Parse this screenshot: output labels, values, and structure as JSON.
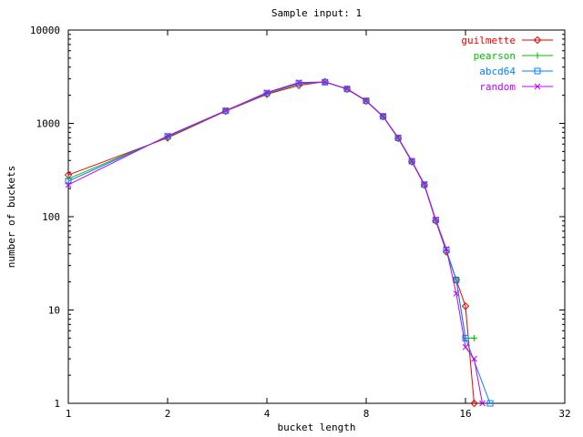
{
  "window": {
    "background": "#ffffff"
  },
  "chart_data": {
    "type": "line",
    "title": "Sample input: 1",
    "xlabel": "bucket length",
    "ylabel": "number of buckets",
    "x_scale": "log2",
    "y_scale": "log10",
    "xlim": [
      1,
      32
    ],
    "ylim": [
      1,
      10000
    ],
    "x_ticks": [
      1,
      2,
      4,
      8,
      16,
      32
    ],
    "y_ticks": [
      1,
      10,
      100,
      1000,
      10000
    ],
    "grid": false,
    "legend_position": "top-right-inside",
    "axis_color": "#000000",
    "text_color": "#000000",
    "series": [
      {
        "name": "guilmette",
        "color": "#ee0000",
        "marker": "diamond",
        "points": [
          [
            1,
            280
          ],
          [
            2,
            700
          ],
          [
            3,
            1350
          ],
          [
            4,
            2050
          ],
          [
            5,
            2550
          ],
          [
            6,
            2800
          ],
          [
            7,
            2320
          ],
          [
            8,
            1730
          ],
          [
            9,
            1180
          ],
          [
            10,
            690
          ],
          [
            11,
            388
          ],
          [
            12,
            218
          ],
          [
            13,
            90
          ],
          [
            14,
            42
          ],
          [
            15,
            21
          ],
          [
            16,
            11
          ],
          [
            17,
            1
          ]
        ]
      },
      {
        "name": "pearson",
        "color": "#00bb00",
        "marker": "plus",
        "points": [
          [
            1,
            255
          ],
          [
            2,
            715
          ],
          [
            3,
            1360
          ],
          [
            4,
            2090
          ],
          [
            5,
            2650
          ],
          [
            6,
            2770
          ],
          [
            7,
            2330
          ],
          [
            8,
            1740
          ],
          [
            9,
            1185
          ],
          [
            10,
            695
          ],
          [
            11,
            390
          ],
          [
            12,
            220
          ],
          [
            13,
            91
          ],
          [
            14,
            43
          ],
          [
            15,
            21
          ],
          [
            16,
            5
          ],
          [
            17,
            5
          ]
        ]
      },
      {
        "name": "abcd64",
        "color": "#0080ff",
        "marker": "square",
        "points": [
          [
            1,
            240
          ],
          [
            2,
            725
          ],
          [
            3,
            1365
          ],
          [
            4,
            2110
          ],
          [
            5,
            2700
          ],
          [
            6,
            2760
          ],
          [
            7,
            2340
          ],
          [
            8,
            1745
          ],
          [
            9,
            1190
          ],
          [
            10,
            700
          ],
          [
            11,
            393
          ],
          [
            12,
            221
          ],
          [
            13,
            92
          ],
          [
            14,
            44
          ],
          [
            15,
            21
          ],
          [
            16,
            5
          ],
          [
            19,
            1
          ]
        ]
      },
      {
        "name": "random",
        "color": "#bf00ff",
        "marker": "x",
        "points": [
          [
            1,
            220
          ],
          [
            2,
            735
          ],
          [
            3,
            1370
          ],
          [
            4,
            2140
          ],
          [
            5,
            2740
          ],
          [
            6,
            2780
          ],
          [
            7,
            2350
          ],
          [
            8,
            1750
          ],
          [
            9,
            1195
          ],
          [
            10,
            705
          ],
          [
            11,
            395
          ],
          [
            12,
            223
          ],
          [
            13,
            93
          ],
          [
            14,
            45
          ],
          [
            15,
            15
          ],
          [
            16,
            4
          ],
          [
            17,
            3
          ],
          [
            18,
            1
          ]
        ]
      }
    ]
  }
}
